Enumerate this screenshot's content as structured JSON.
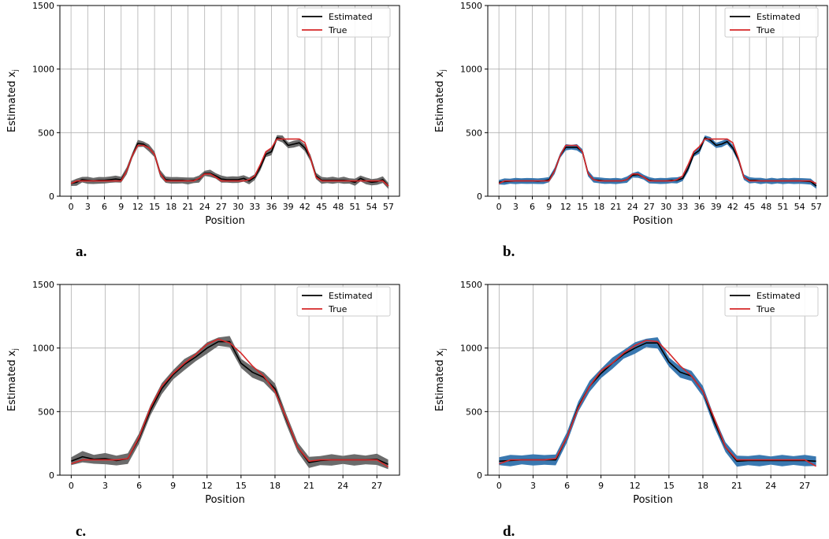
{
  "chart_data": [
    {
      "type": "line",
      "panel_label": "a.",
      "xlabel": "Position",
      "ylabel": "Estimated x",
      "ylabel_sub": "j",
      "xlim": [
        -2,
        59
      ],
      "ylim": [
        0,
        1500
      ],
      "xticks": [
        0,
        3,
        6,
        9,
        12,
        15,
        18,
        21,
        24,
        27,
        30,
        33,
        36,
        39,
        42,
        45,
        48,
        51,
        54,
        57
      ],
      "xtick_labels": [
        "0",
        "3",
        "6",
        "9",
        "12",
        "15",
        "18",
        "21",
        "24",
        "27",
        "30",
        "33",
        "36",
        "39",
        "42",
        "45",
        "48",
        "51",
        "54",
        "57"
      ],
      "yticks": [
        0,
        500,
        1000,
        1500
      ],
      "ytick_labels": [
        "0",
        "500",
        "1000",
        "1500"
      ],
      "grid": true,
      "band_color": "#6b6b6b",
      "legend": {
        "position": "top-right",
        "entries": [
          "Estimated",
          "True"
        ]
      },
      "series": [
        {
          "name": "Estimated",
          "color": "#000000",
          "values": [
            100,
            110,
            130,
            125,
            120,
            125,
            125,
            130,
            135,
            130,
            200,
            320,
            415,
            410,
            380,
            330,
            180,
            130,
            125,
            125,
            125,
            120,
            125,
            135,
            180,
            180,
            160,
            135,
            130,
            130,
            130,
            140,
            120,
            150,
            230,
            330,
            350,
            460,
            450,
            400,
            410,
            420,
            380,
            300,
            160,
            125,
            125,
            125,
            125,
            125,
            120,
            110,
            140,
            120,
            110,
            115,
            130,
            80
          ],
          "band_width": 28
        },
        {
          "name": "True",
          "color": "#d62728",
          "values": [
            100,
            120,
            120,
            120,
            120,
            120,
            120,
            120,
            120,
            120,
            200,
            320,
            400,
            400,
            380,
            330,
            180,
            120,
            120,
            120,
            120,
            120,
            120,
            140,
            175,
            175,
            150,
            120,
            120,
            120,
            120,
            120,
            130,
            160,
            250,
            350,
            380,
            450,
            450,
            450,
            450,
            450,
            420,
            300,
            150,
            120,
            120,
            120,
            120,
            120,
            120,
            120,
            120,
            120,
            120,
            120,
            120,
            80
          ]
        }
      ]
    },
    {
      "type": "line",
      "panel_label": "b.",
      "xlabel": "Position",
      "ylabel": "Estimated x",
      "ylabel_sub": "j",
      "xlim": [
        -2,
        59
      ],
      "ylim": [
        0,
        1500
      ],
      "xticks": [
        0,
        3,
        6,
        9,
        12,
        15,
        18,
        21,
        24,
        27,
        30,
        33,
        36,
        39,
        42,
        45,
        48,
        51,
        54,
        57
      ],
      "xtick_labels": [
        "0",
        "3",
        "6",
        "9",
        "12",
        "15",
        "18",
        "21",
        "24",
        "27",
        "30",
        "33",
        "36",
        "39",
        "42",
        "45",
        "48",
        "51",
        "54",
        "57"
      ],
      "yticks": [
        0,
        500,
        1000,
        1500
      ],
      "ytick_labels": [
        "0",
        "500",
        "1000",
        "1500"
      ],
      "grid": true,
      "band_color": "#3a78b0",
      "legend": {
        "position": "top-right",
        "entries": [
          "Estimated",
          "True"
        ]
      },
      "series": [
        {
          "name": "Estimated",
          "color": "#000000",
          "values": [
            110,
            115,
            118,
            120,
            120,
            120,
            120,
            118,
            120,
            130,
            200,
            320,
            385,
            385,
            385,
            350,
            180,
            130,
            125,
            120,
            120,
            120,
            120,
            130,
            165,
            170,
            150,
            125,
            120,
            120,
            120,
            125,
            125,
            140,
            220,
            330,
            360,
            460,
            440,
            400,
            410,
            430,
            380,
            290,
            150,
            125,
            125,
            120,
            120,
            120,
            120,
            120,
            120,
            120,
            120,
            118,
            115,
            80
          ],
          "band_width": 25
        },
        {
          "name": "True",
          "color": "#d62728",
          "values": [
            100,
            120,
            120,
            120,
            120,
            120,
            120,
            120,
            120,
            120,
            200,
            320,
            400,
            400,
            400,
            350,
            180,
            130,
            120,
            120,
            120,
            120,
            120,
            130,
            175,
            175,
            150,
            120,
            120,
            120,
            120,
            120,
            130,
            160,
            250,
            350,
            390,
            450,
            450,
            450,
            450,
            450,
            420,
            300,
            150,
            120,
            120,
            120,
            120,
            120,
            120,
            120,
            120,
            120,
            120,
            120,
            120,
            100
          ]
        }
      ]
    },
    {
      "type": "line",
      "panel_label": "c.",
      "xlabel": "Position",
      "ylabel": "Estimated x",
      "ylabel_sub": "j",
      "xlim": [
        -1,
        29
      ],
      "ylim": [
        0,
        1500
      ],
      "xticks": [
        0,
        3,
        6,
        9,
        12,
        15,
        18,
        21,
        24,
        27
      ],
      "xtick_labels": [
        "0",
        "3",
        "6",
        "9",
        "12",
        "15",
        "18",
        "21",
        "24",
        "27"
      ],
      "yticks": [
        0,
        500,
        1000,
        1500
      ],
      "ytick_labels": [
        "0",
        "500",
        "1000",
        "1500"
      ],
      "grid": true,
      "band_color": "#6b6b6b",
      "legend": {
        "position": "top-right",
        "entries": [
          "Estimated",
          "True"
        ]
      },
      "series": [
        {
          "name": "Estimated",
          "color": "#000000",
          "values": [
            110,
            145,
            125,
            130,
            115,
            130,
            290,
            510,
            680,
            790,
            870,
            930,
            1000,
            1050,
            1050,
            880,
            810,
            770,
            680,
            440,
            220,
            100,
            115,
            120,
            120,
            120,
            120,
            125,
            85
          ],
          "band_width": 45
        },
        {
          "name": "True",
          "color": "#d62728",
          "values": [
            90,
            120,
            120,
            120,
            120,
            130,
            300,
            530,
            700,
            800,
            880,
            950,
            1030,
            1070,
            1040,
            960,
            860,
            780,
            660,
            450,
            220,
            110,
            120,
            120,
            120,
            120,
            120,
            120,
            65
          ]
        }
      ]
    },
    {
      "type": "line",
      "panel_label": "d.",
      "xlabel": "Position",
      "ylabel": "Estimated x",
      "ylabel_sub": "j",
      "xlim": [
        -1,
        29
      ],
      "ylim": [
        0,
        1500
      ],
      "xticks": [
        0,
        3,
        6,
        9,
        12,
        15,
        18,
        21,
        24,
        27
      ],
      "xtick_labels": [
        "0",
        "3",
        "6",
        "9",
        "12",
        "15",
        "18",
        "21",
        "24",
        "27"
      ],
      "yticks": [
        0,
        500,
        1000,
        1500
      ],
      "ytick_labels": [
        "0",
        "500",
        "1000",
        "1500"
      ],
      "grid": true,
      "band_color": "#3a78b0",
      "legend": {
        "position": "top-right",
        "entries": [
          "Estimated",
          "True"
        ]
      },
      "series": [
        {
          "name": "Estimated",
          "color": "#000000",
          "values": [
            110,
            115,
            120,
            120,
            120,
            120,
            300,
            540,
            700,
            800,
            880,
            950,
            1000,
            1040,
            1040,
            890,
            810,
            780,
            660,
            420,
            220,
            110,
            115,
            115,
            115,
            115,
            115,
            115,
            110
          ],
          "band_width": 45
        },
        {
          "name": "True",
          "color": "#d62728",
          "values": [
            90,
            120,
            120,
            120,
            120,
            130,
            300,
            530,
            700,
            820,
            880,
            960,
            1020,
            1060,
            1050,
            960,
            860,
            780,
            660,
            450,
            220,
            120,
            120,
            120,
            120,
            120,
            120,
            120,
            70
          ]
        }
      ]
    }
  ]
}
